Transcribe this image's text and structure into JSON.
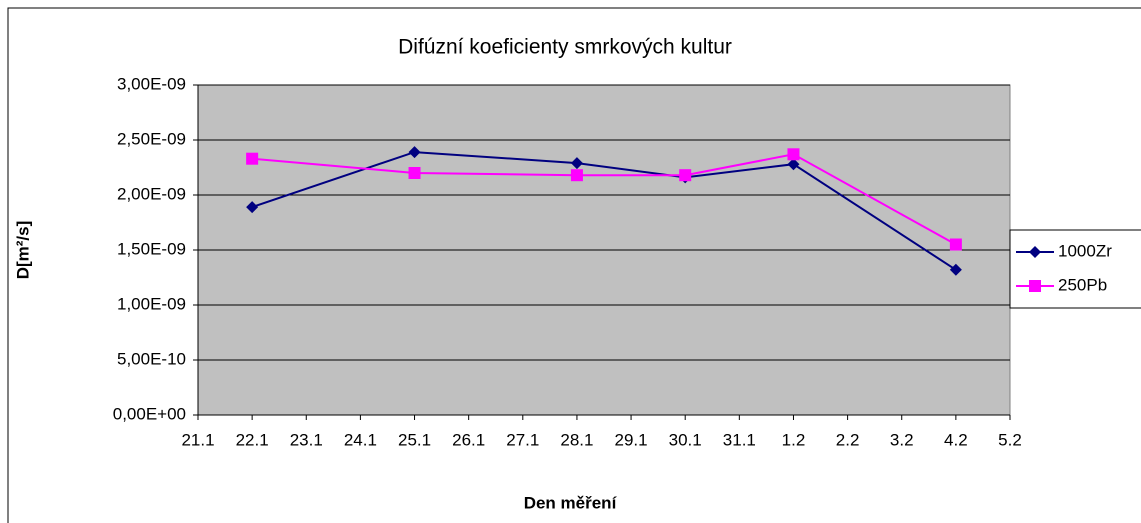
{
  "chart_data": {
    "type": "line",
    "title": "Difúzní koeficienty smrkových kultur",
    "xlabel": "Den měření",
    "ylabel": "D[m²/s]",
    "xticks": [
      "21.1",
      "22.1",
      "23.1",
      "24.1",
      "25.1",
      "26.1",
      "27.1",
      "28.1",
      "29.1",
      "30.1",
      "31.1",
      "1.2",
      "2.2",
      "3.2",
      "4.2",
      "5.2"
    ],
    "x": [
      "22.1",
      "25.1",
      "28.1",
      "30.1",
      "1.2",
      "4.2"
    ],
    "series": [
      {
        "name": "1000Zr",
        "color": "#000080",
        "marker": "diamond",
        "values": [
          1.89e-09,
          2.39e-09,
          2.29e-09,
          2.16e-09,
          2.28e-09,
          1.32e-09
        ]
      },
      {
        "name": "250Pb",
        "color": "#ff00ff",
        "marker": "square",
        "values": [
          2.33e-09,
          2.2e-09,
          2.18e-09,
          2.18e-09,
          2.37e-09,
          1.55e-09
        ]
      }
    ],
    "ylim": [
      0,
      3e-09
    ],
    "yticks": [
      {
        "value": 0,
        "label": "0,00E+00"
      },
      {
        "value": 5e-10,
        "label": "5,00E-10"
      },
      {
        "value": 1e-09,
        "label": "1,00E-09"
      },
      {
        "value": 1.5e-09,
        "label": "1,50E-09"
      },
      {
        "value": 2e-09,
        "label": "2,00E-09"
      },
      {
        "value": 2.5e-09,
        "label": "2,50E-09"
      },
      {
        "value": 3e-09,
        "label": "3,00E-09"
      }
    ],
    "grid": true,
    "legend": "right"
  }
}
